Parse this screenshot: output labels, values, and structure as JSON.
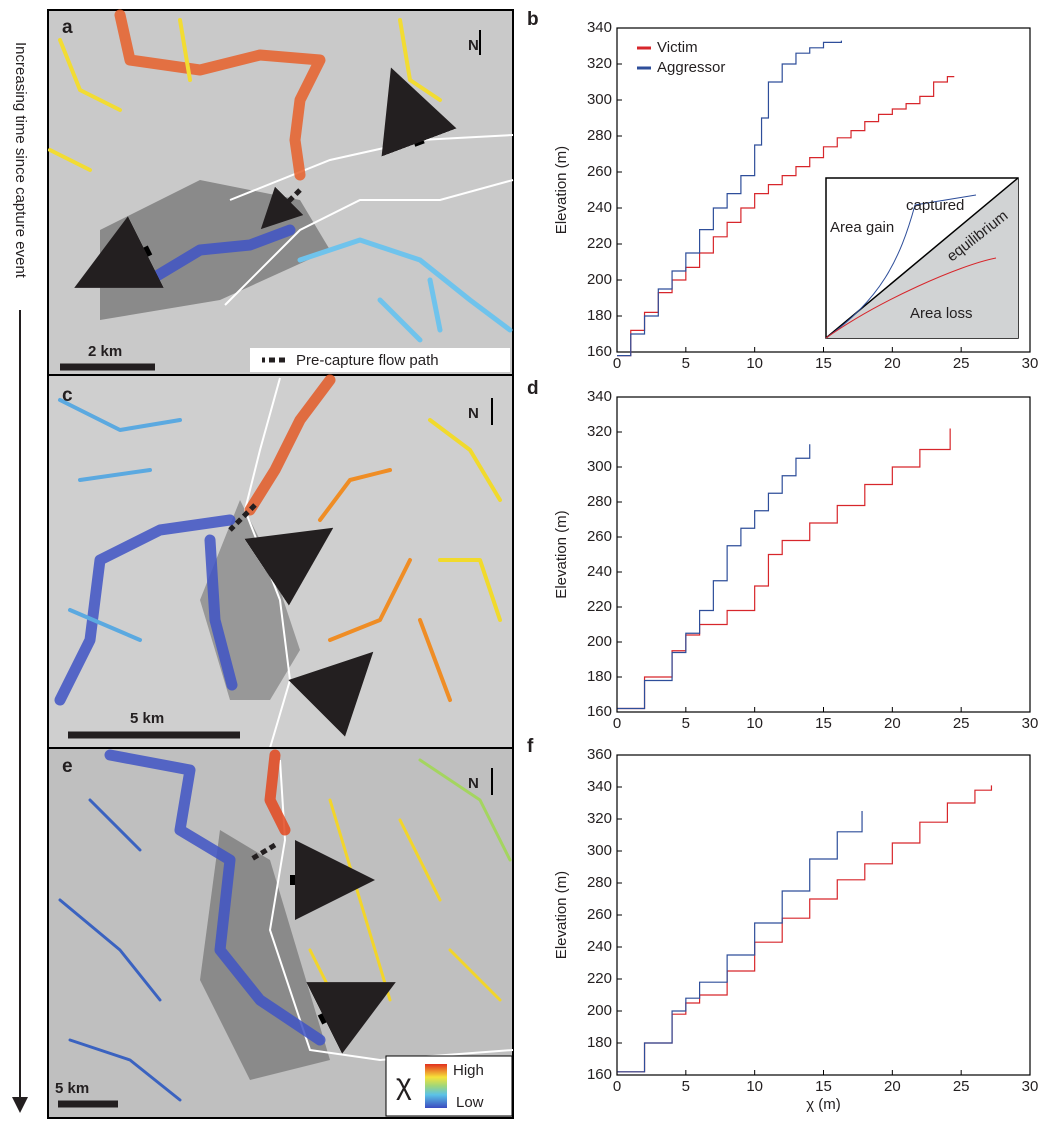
{
  "figure": {
    "side_label": "Increasing time since capture event",
    "maps": [
      {
        "panel": "a",
        "north": "N",
        "scale": "2 km",
        "legend": "Pre-capture flow path"
      },
      {
        "panel": "c",
        "north": "N",
        "scale": "5 km"
      },
      {
        "panel": "e",
        "north": "N",
        "scale": "5 km",
        "chi_symbol": "χ",
        "chi_high": "High",
        "chi_low": "Low"
      }
    ],
    "inset": {
      "captured": "captured",
      "equilibrium": "equilibrium",
      "gain": "Area gain",
      "loss": "Area loss"
    }
  },
  "chart_data": [
    {
      "type": "line",
      "panel": "b",
      "ylabel": "Elevation (m)",
      "xlim": [
        0,
        30
      ],
      "ylim": [
        160,
        340
      ],
      "xticks": [
        0,
        5,
        10,
        15,
        20,
        25,
        30
      ],
      "yticks": [
        160,
        180,
        200,
        220,
        240,
        260,
        280,
        300,
        320,
        340
      ],
      "legend": "upper left",
      "series": [
        {
          "name": "Victim",
          "color": "#d7262b",
          "x": [
            0,
            1,
            2,
            3,
            4,
            5,
            6,
            7,
            8,
            9,
            10,
            11,
            12,
            13,
            14,
            15,
            16,
            17,
            18,
            19,
            20,
            21,
            22,
            23,
            24,
            24.5
          ],
          "values": [
            158,
            172,
            182,
            193,
            200,
            207,
            215,
            224,
            232,
            240,
            248,
            253,
            258,
            263,
            268,
            274,
            279,
            283,
            288,
            292,
            295,
            298,
            302,
            310,
            313,
            313
          ]
        },
        {
          "name": "Aggressor",
          "color": "#2e4e9a",
          "x": [
            0,
            1,
            2,
            3,
            4,
            5,
            6,
            7,
            8,
            9,
            10,
            10.5,
            11,
            12,
            13,
            14,
            15,
            16.3
          ],
          "values": [
            158,
            170,
            180,
            195,
            205,
            215,
            228,
            240,
            248,
            258,
            275,
            290,
            310,
            320,
            326,
            329,
            332,
            333
          ]
        }
      ]
    },
    {
      "type": "line",
      "panel": "d",
      "ylabel": "Elevation (m)",
      "xlim": [
        0,
        30
      ],
      "ylim": [
        160,
        340
      ],
      "xticks": [
        0,
        5,
        10,
        15,
        20,
        25,
        30
      ],
      "yticks": [
        160,
        180,
        200,
        220,
        240,
        260,
        280,
        300,
        320,
        340
      ],
      "series": [
        {
          "color": "#d7262b",
          "x": [
            0,
            2,
            4,
            5,
            6,
            8,
            10,
            11,
            12,
            14,
            16,
            18,
            20,
            22,
            24.2
          ],
          "values": [
            162,
            180,
            195,
            204,
            210,
            218,
            232,
            250,
            258,
            268,
            278,
            290,
            300,
            310,
            322
          ]
        },
        {
          "color": "#2e4e9a",
          "x": [
            0,
            2,
            4,
            5,
            6,
            7,
            8,
            9,
            10,
            11,
            12,
            13,
            14
          ],
          "values": [
            162,
            178,
            194,
            205,
            218,
            235,
            255,
            265,
            275,
            285,
            295,
            305,
            313
          ]
        }
      ]
    },
    {
      "type": "line",
      "panel": "f",
      "ylabel": "Elevation (m)",
      "xlabel": "χ (m)",
      "xlim": [
        0,
        30
      ],
      "ylim": [
        160,
        360
      ],
      "xticks": [
        0,
        5,
        10,
        15,
        20,
        25,
        30
      ],
      "yticks": [
        160,
        180,
        200,
        220,
        240,
        260,
        280,
        300,
        320,
        340,
        360
      ],
      "series": [
        {
          "color": "#d7262b",
          "x": [
            0,
            2,
            4,
            5,
            6,
            8,
            10,
            12,
            14,
            16,
            18,
            20,
            22,
            24,
            26,
            27.2
          ],
          "values": [
            162,
            180,
            198,
            205,
            210,
            225,
            243,
            258,
            270,
            282,
            292,
            305,
            318,
            330,
            338,
            341
          ]
        },
        {
          "color": "#2e4e9a",
          "x": [
            0,
            2,
            4,
            5,
            6,
            8,
            10,
            12,
            14,
            16,
            17.8
          ],
          "values": [
            162,
            180,
            200,
            208,
            218,
            235,
            255,
            275,
            295,
            312,
            325
          ]
        }
      ]
    }
  ]
}
